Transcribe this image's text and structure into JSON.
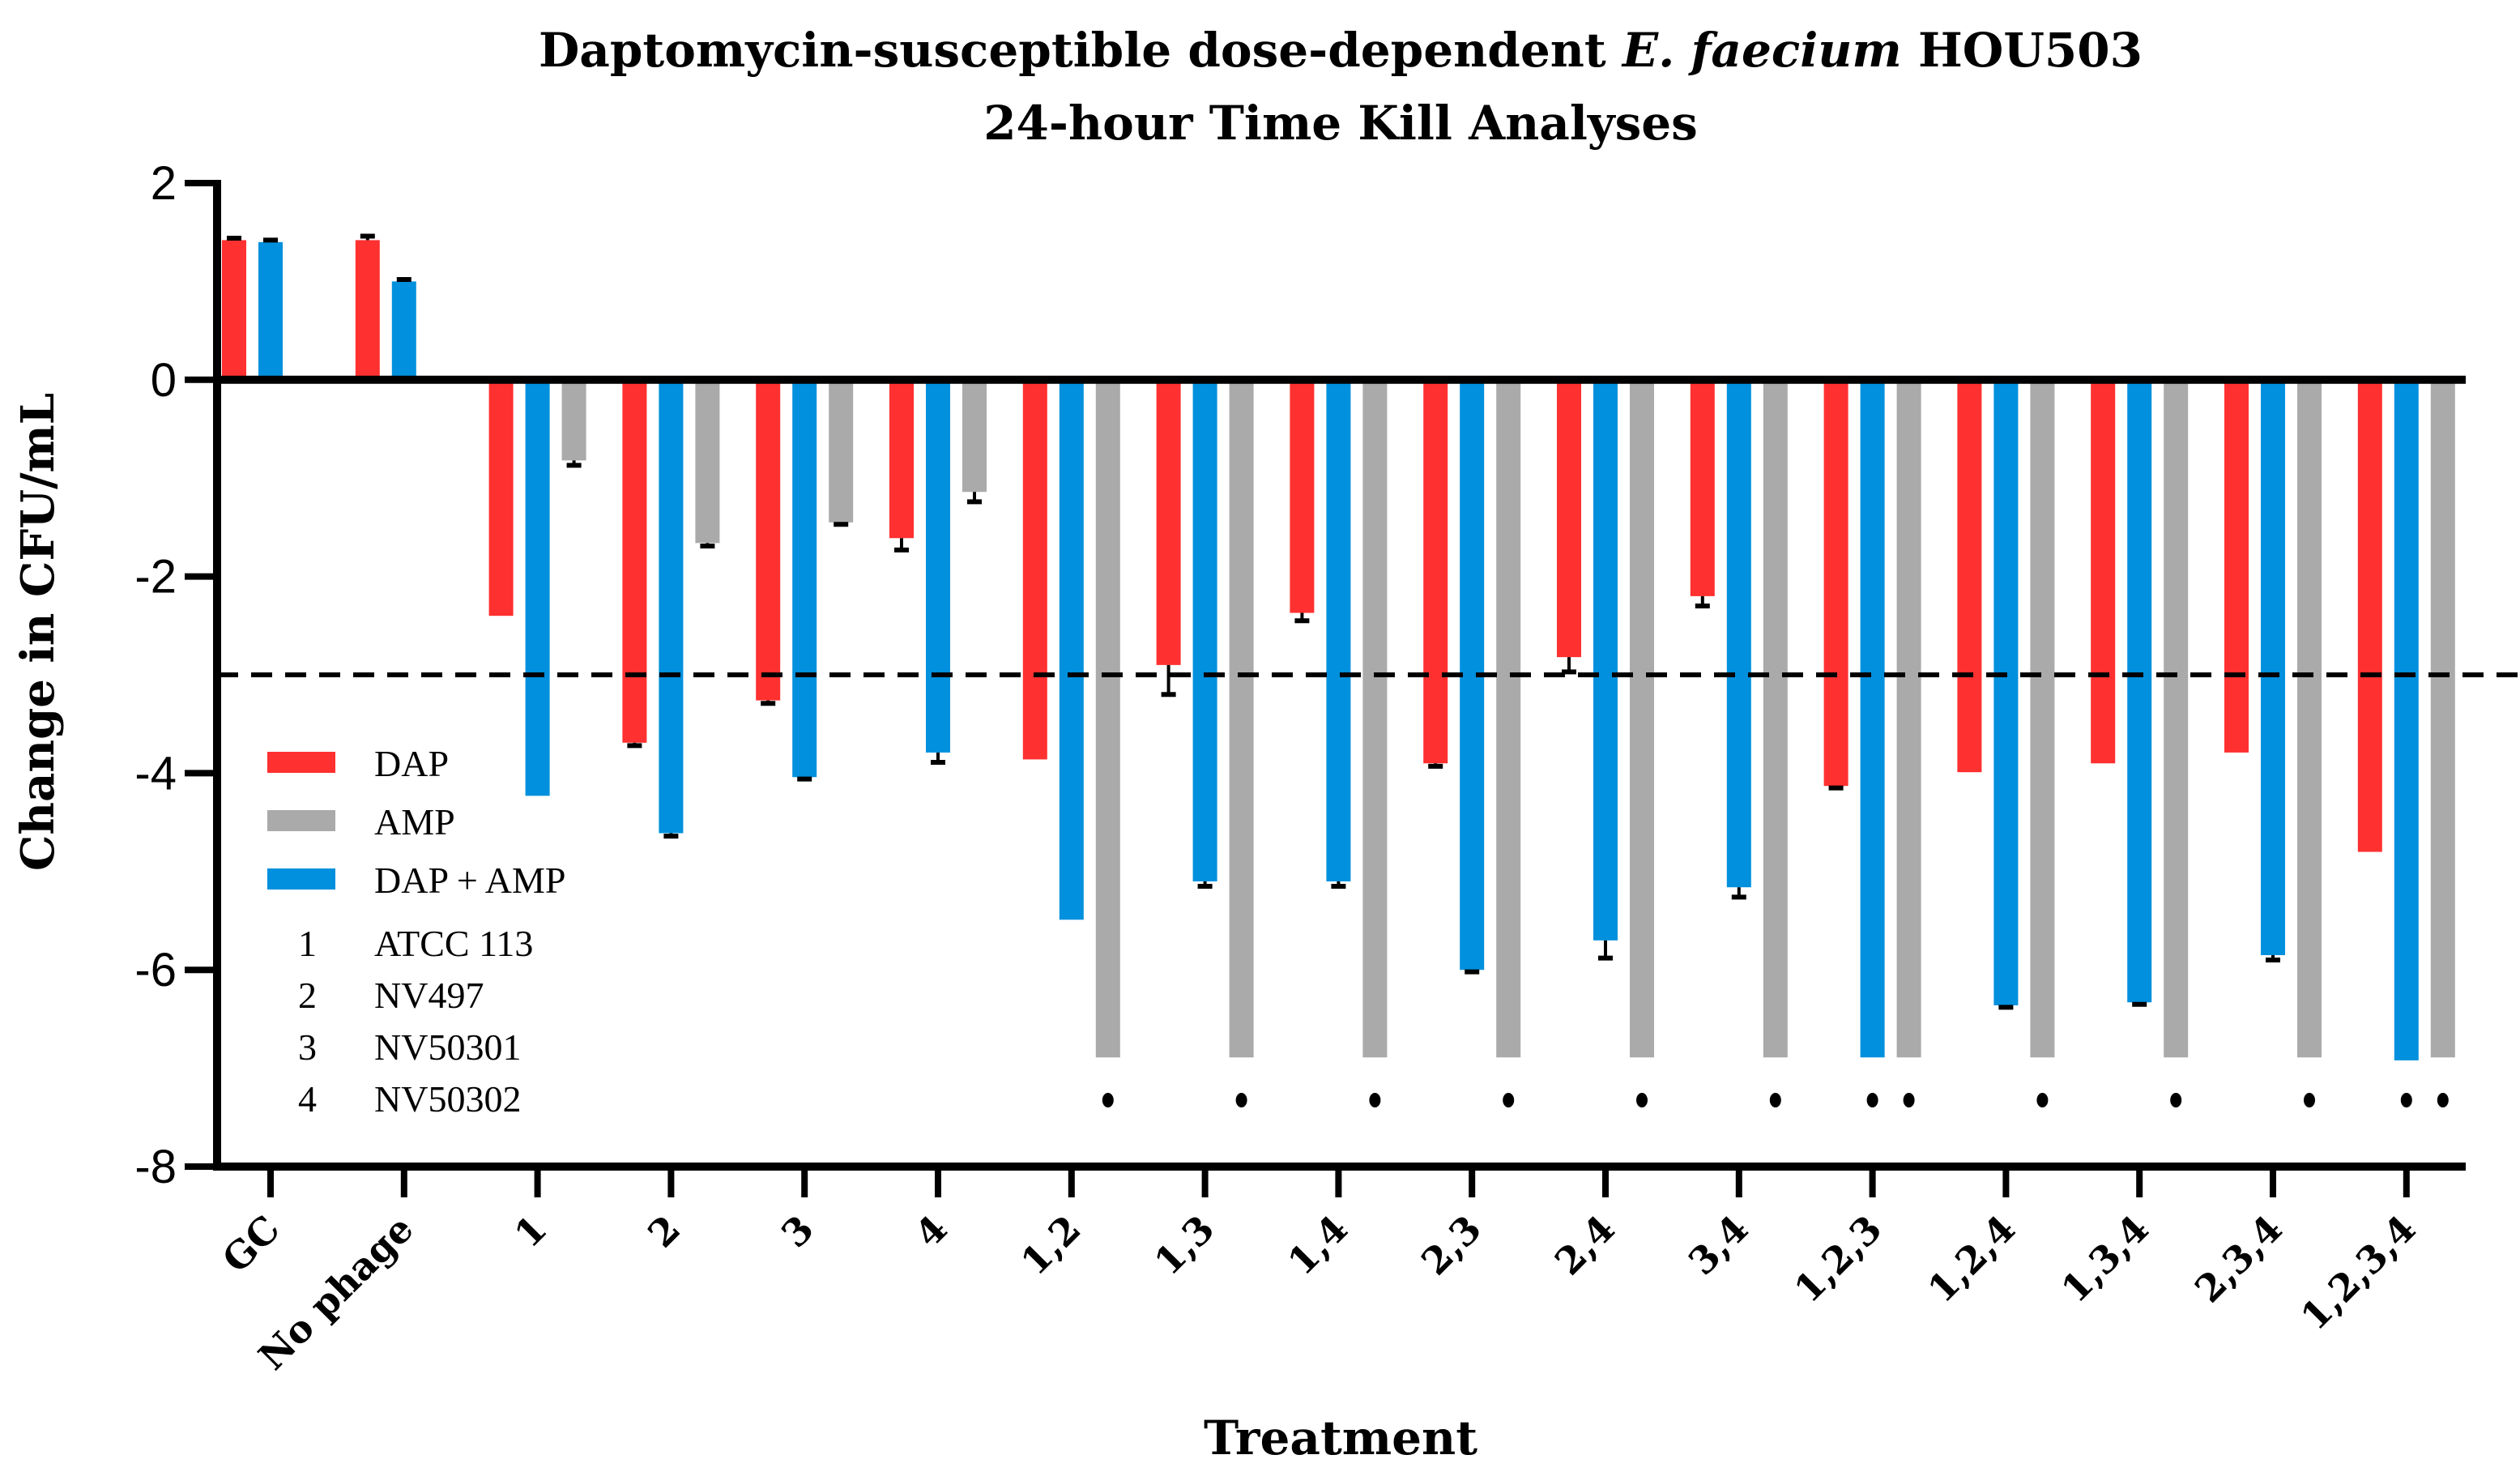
{
  "chart_data": {
    "type": "bar",
    "title_line1_pre": "Daptomycin-susceptible dose-dependent ",
    "title_line1_italic": "E. faecium",
    "title_line1_post": " HOU503",
    "title_line2": "24-hour Time Kill Analyses",
    "xlabel": "Treatment",
    "ylabel": "Change in CFU/mL",
    "ylim": [
      -8,
      2
    ],
    "yticks": [
      "2",
      "0",
      "-2",
      "-4",
      "-6",
      "-8"
    ],
    "ytick_values": [
      2,
      0,
      -2,
      -4,
      -6,
      -8
    ],
    "reference_line": -3,
    "categories": [
      "GC",
      "No phage",
      "1",
      "2",
      "3",
      "4",
      "1,2",
      "1,3",
      "1,4",
      "2,3",
      "2,4",
      "3,4",
      "1,2,3",
      "1,2,4",
      "1,3,4",
      "2,3,4",
      "1,2,3,4"
    ],
    "series": [
      {
        "name": "DAP",
        "color": "#ff3030",
        "values": [
          1.42,
          1.42,
          -2.4,
          -3.69,
          -3.26,
          -1.61,
          -3.86,
          -2.9,
          -2.37,
          -3.9,
          -2.82,
          -2.2,
          -4.13,
          -3.99,
          -3.9,
          -3.79,
          -4.8
        ],
        "errors": [
          0.02,
          0.04,
          0,
          0.03,
          0.03,
          0.12,
          0,
          0.3,
          0.08,
          0.03,
          0.15,
          0.1,
          0.02,
          0,
          0,
          0,
          0
        ]
      },
      {
        "name": "DAP + AMP",
        "color": "#0090dd",
        "values": [
          1.4,
          1.0,
          -4.23,
          -4.61,
          -4.04,
          -3.79,
          -5.49,
          -5.1,
          -5.1,
          -6.0,
          -5.7,
          -5.16,
          -6.89,
          -6.36,
          -6.33,
          -5.85,
          -6.92
        ],
        "errors": [
          0.02,
          0.02,
          0,
          0.03,
          0.02,
          0.1,
          0,
          0.05,
          0.05,
          0.02,
          0.18,
          0.1,
          0,
          0.02,
          0.02,
          0.05,
          0
        ]
      },
      {
        "name": "AMP",
        "color": "#aaaaaa",
        "values": [
          null,
          null,
          -0.82,
          -1.66,
          -1.45,
          -1.14,
          -6.89,
          -6.89,
          -6.89,
          -6.89,
          -6.89,
          -6.89,
          -6.89,
          -6.89,
          -6.89,
          -6.89,
          -6.89
        ],
        "errors": [
          0,
          0,
          0.05,
          0.03,
          0.02,
          0.1,
          0,
          0,
          0,
          0,
          0,
          0,
          0,
          0,
          0,
          0,
          0
        ]
      }
    ],
    "below_detection_markers": {
      "DAP + AMP": [
        "1,2,3",
        "1,2,3,4"
      ],
      "AMP": [
        "1,2",
        "1,3",
        "1,4",
        "2,3",
        "2,4",
        "3,4",
        "1,2,3",
        "1,2,4",
        "1,3,4",
        "2,3,4",
        "1,2,3,4"
      ]
    },
    "legend": {
      "placement": "inside-left",
      "series_entries": [
        "DAP",
        "AMP",
        "DAP + AMP"
      ],
      "phage_key": [
        {
          "num": "1",
          "name": "ATCC 113"
        },
        {
          "num": "2",
          "name": "NV497"
        },
        {
          "num": "3",
          "name": "NV50301"
        },
        {
          "num": "4",
          "name": "NV50302"
        }
      ]
    }
  }
}
